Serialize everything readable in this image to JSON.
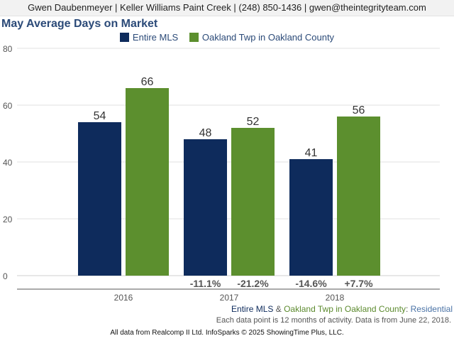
{
  "header": {
    "agent_line": "Gwen Daubenmeyer | Keller Williams Paint Creek | (248) 850-1436 | gwen@theintegrityteam.com"
  },
  "colors": {
    "series1": "#0e2b5c",
    "series2": "#5c8f2e",
    "axis_text": "#555555",
    "grid": "#e0e0e0"
  },
  "chart_data": {
    "type": "bar",
    "title": "May Average Days on Market",
    "categories": [
      "2016",
      "2017",
      "2018"
    ],
    "series": [
      {
        "name": "Entire MLS",
        "values": [
          54,
          48,
          41
        ]
      },
      {
        "name": "Oakland Twp in Oakland County",
        "values": [
          66,
          52,
          56
        ]
      }
    ],
    "change_labels": [
      [
        "",
        ""
      ],
      [
        "-11.1%",
        "-21.2%"
      ],
      [
        "-14.6%",
        "+7.7%"
      ]
    ],
    "yticks": [
      0,
      20,
      40,
      60,
      80
    ],
    "ylim": [
      0,
      80
    ],
    "grid": true,
    "legend_position": "top-center"
  },
  "footer": {
    "legend_mls": "Entire MLS",
    "legend_amp": " & ",
    "legend_area": "Oakland Twp in Oakland County",
    "legend_colon": ": ",
    "legend_type": "Residential",
    "note": "Each data point is 12 months of activity. Data is from June 22, 2018.",
    "source": "All data from Realcomp II Ltd. InfoSparks © 2025 ShowingTime Plus, LLC."
  }
}
